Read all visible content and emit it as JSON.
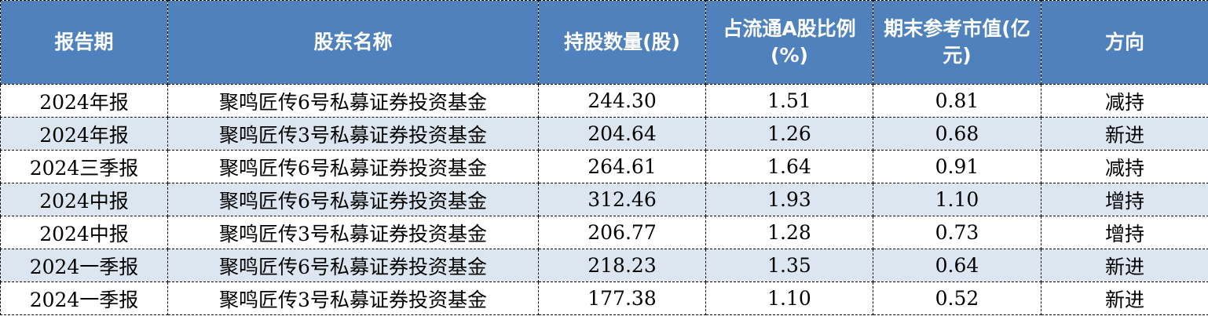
{
  "colors": {
    "header_bg": "#4f81bd",
    "header_text": "#ffffff",
    "stripe": "#dce6f1"
  },
  "headers": [
    "报告期",
    "股东名称",
    "持股数量(股)",
    "占流通A股比例(%)",
    "期末参考市值(亿元)",
    "方向"
  ],
  "rows": [
    [
      "2024年报",
      "聚鸣匠传6号私募证券投资基金",
      "244.30",
      "1.51",
      "0.81",
      "减持"
    ],
    [
      "2024年报",
      "聚鸣匠传3号私募证券投资基金",
      "204.64",
      "1.26",
      "0.68",
      "新进"
    ],
    [
      "2024三季报",
      "聚鸣匠传6号私募证券投资基金",
      "264.61",
      "1.64",
      "0.91",
      "减持"
    ],
    [
      "2024中报",
      "聚鸣匠传6号私募证券投资基金",
      "312.46",
      "1.93",
      "1.10",
      "增持"
    ],
    [
      "2024中报",
      "聚鸣匠传3号私募证券投资基金",
      "206.77",
      "1.28",
      "0.73",
      "增持"
    ],
    [
      "2024一季报",
      "聚鸣匠传6号私募证券投资基金",
      "218.23",
      "1.35",
      "0.64",
      "新进"
    ],
    [
      "2024一季报",
      "聚鸣匠传3号私募证券投资基金",
      "177.38",
      "1.10",
      "0.52",
      "新进"
    ]
  ]
}
